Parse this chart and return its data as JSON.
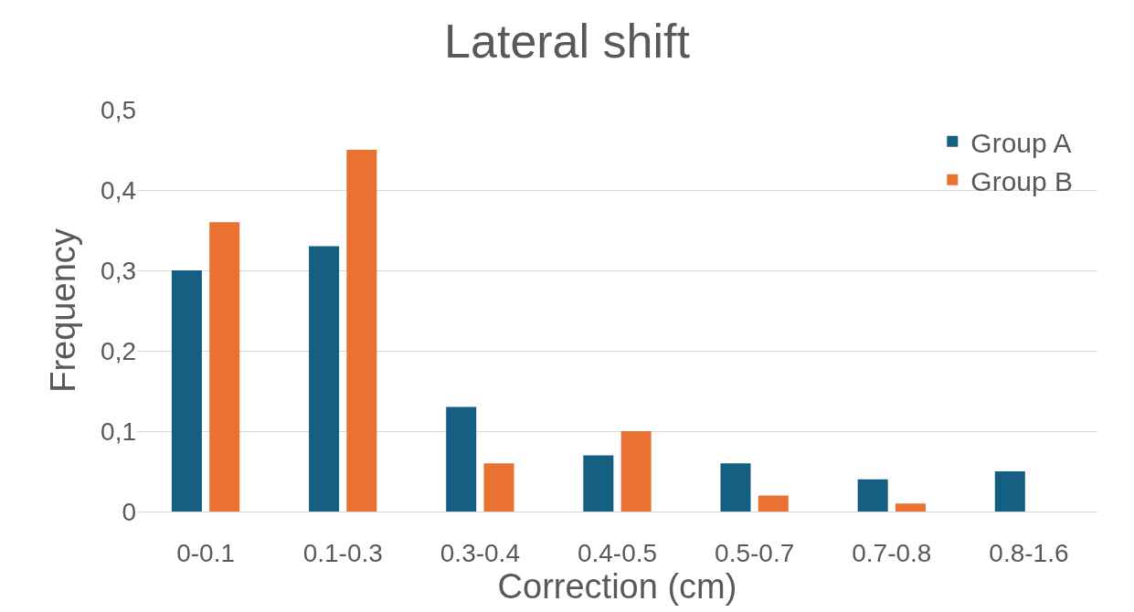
{
  "chart_data": {
    "type": "bar",
    "title": "Lateral shift",
    "xlabel": "Correction (cm)",
    "ylabel": "Frequency",
    "categories": [
      "0-0.1",
      "0.1-0.3",
      "0.3-0.4",
      "0.4-0.5",
      "0.5-0.7",
      "0.7-0.8",
      "0.8-1.6"
    ],
    "series": [
      {
        "name": "Group A",
        "color": "#156082",
        "values": [
          0.3,
          0.33,
          0.13,
          0.07,
          0.06,
          0.04,
          0.05
        ]
      },
      {
        "name": "Group B",
        "color": "#e97132",
        "values": [
          0.36,
          0.45,
          0.06,
          0.1,
          0.02,
          0.01,
          0
        ]
      }
    ],
    "ylim": [
      0,
      0.5
    ],
    "yticks": [
      {
        "value": 0,
        "label": "0"
      },
      {
        "value": 0.1,
        "label": "0,1"
      },
      {
        "value": 0.2,
        "label": "0,2"
      },
      {
        "value": 0.3,
        "label": "0,3"
      },
      {
        "value": 0.4,
        "label": "0,4"
      },
      {
        "value": 0.5,
        "label": "0,5"
      }
    ],
    "grid": "y",
    "legend": "top right"
  }
}
